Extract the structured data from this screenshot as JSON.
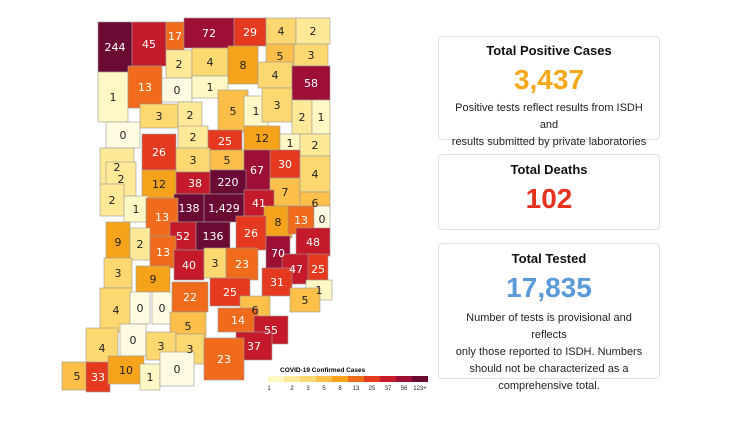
{
  "map": {
    "legend_title": "COVID-19 Confirmed Cases",
    "legend_ticks": [
      "1",
      "2",
      "3",
      "5",
      "8",
      "13",
      "25",
      "37",
      "56",
      "123+"
    ],
    "legend_colors": [
      "#fff7c4",
      "#fde998",
      "#fdd870",
      "#fbbf4a",
      "#f7a21b",
      "#f06b1c",
      "#e53a20",
      "#c41a2a",
      "#9e0f36",
      "#6b0a32"
    ],
    "counties": [
      {
        "value": "244"
      },
      {
        "value": "45"
      },
      {
        "value": "17"
      },
      {
        "value": "72"
      },
      {
        "value": "29"
      },
      {
        "value": "4"
      },
      {
        "value": "2"
      },
      {
        "value": "2"
      },
      {
        "value": "4"
      },
      {
        "value": "8"
      },
      {
        "value": "5"
      },
      {
        "value": "3"
      },
      {
        "value": "1"
      },
      {
        "value": "13"
      },
      {
        "value": "0"
      },
      {
        "value": "1"
      },
      {
        "value": "4"
      },
      {
        "value": "58"
      },
      {
        "value": "3"
      },
      {
        "value": "2"
      },
      {
        "value": "5"
      },
      {
        "value": "1"
      },
      {
        "value": "3"
      },
      {
        "value": "2"
      },
      {
        "value": "1"
      },
      {
        "value": "0"
      },
      {
        "value": "2"
      },
      {
        "value": "25"
      },
      {
        "value": "12"
      },
      {
        "value": "1"
      },
      {
        "value": "2"
      },
      {
        "value": "2"
      },
      {
        "value": "26"
      },
      {
        "value": "3"
      },
      {
        "value": "5"
      },
      {
        "value": "30"
      },
      {
        "value": "67"
      },
      {
        "value": "2"
      },
      {
        "value": "12"
      },
      {
        "value": "38"
      },
      {
        "value": "220"
      },
      {
        "value": "4"
      },
      {
        "value": "7"
      },
      {
        "value": "2"
      },
      {
        "value": "1"
      },
      {
        "value": "138"
      },
      {
        "value": "1,429"
      },
      {
        "value": "41"
      },
      {
        "value": "6"
      },
      {
        "value": "13"
      },
      {
        "value": "8"
      },
      {
        "value": "13"
      },
      {
        "value": "0"
      },
      {
        "value": "9"
      },
      {
        "value": "2"
      },
      {
        "value": "52"
      },
      {
        "value": "136"
      },
      {
        "value": "26"
      },
      {
        "value": "48"
      },
      {
        "value": "13"
      },
      {
        "value": "70"
      },
      {
        "value": "3"
      },
      {
        "value": "40"
      },
      {
        "value": "3"
      },
      {
        "value": "23"
      },
      {
        "value": "47"
      },
      {
        "value": "25"
      },
      {
        "value": "9"
      },
      {
        "value": "31"
      },
      {
        "value": "1"
      },
      {
        "value": "22"
      },
      {
        "value": "25"
      },
      {
        "value": "5"
      },
      {
        "value": "4"
      },
      {
        "value": "0"
      },
      {
        "value": "0"
      },
      {
        "value": "6"
      },
      {
        "value": "5"
      },
      {
        "value": "14"
      },
      {
        "value": "55"
      },
      {
        "value": "0"
      },
      {
        "value": "4"
      },
      {
        "value": "3"
      },
      {
        "value": "3"
      },
      {
        "value": "37"
      },
      {
        "value": "23"
      },
      {
        "value": "5"
      },
      {
        "value": "33"
      },
      {
        "value": "10"
      },
      {
        "value": "1"
      },
      {
        "value": "0"
      }
    ]
  },
  "cards": {
    "positive": {
      "title": "Total Positive Cases",
      "value": "3,437",
      "value_color": "#f5a81c",
      "note_line1": "Positive tests reflect results from ISDH and",
      "note_line2": "results submitted by private laboratories"
    },
    "deaths": {
      "title": "Total Deaths",
      "value": "102",
      "value_color": "#e53320"
    },
    "tested": {
      "title": "Total Tested",
      "value": "17,835",
      "value_color": "#5b9ad8",
      "note_line1": "Number of tests is provisional and reflects",
      "note_line2": "only those reported to ISDH. Numbers",
      "note_line3": "should not be characterized as a",
      "note_line4": "comprehensive total."
    }
  }
}
